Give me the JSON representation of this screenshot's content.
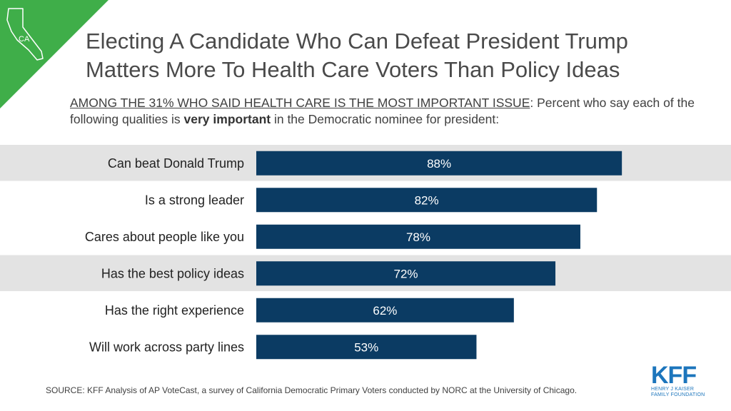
{
  "badge": {
    "label": "CA",
    "accent": "#3fae49"
  },
  "header": {
    "title_line1": "Electing A Candidate Who Can Defeat President Trump",
    "title_line2": "Matters More To Health Care Voters Than Policy Ideas"
  },
  "subtitle": {
    "underlined": "AMONG THE 31% WHO SAID HEALTH CARE IS THE MOST IMPORTANT ISSUE",
    "part1": ": Percent who say each of the following qualities is ",
    "bold": "very important",
    "part2": " in the Democratic nominee for president:"
  },
  "chart_data": {
    "type": "bar",
    "orientation": "horizontal",
    "categories": [
      "Can beat Donald Trump",
      "Is a strong leader",
      "Cares about people like you",
      "Has the best policy ideas",
      "Has the right experience",
      "Will work across party lines"
    ],
    "values": [
      88,
      82,
      78,
      72,
      62,
      53
    ],
    "value_labels": [
      "88%",
      "82%",
      "78%",
      "72%",
      "62%",
      "53%"
    ],
    "highlighted": [
      true,
      false,
      false,
      true,
      false,
      false
    ],
    "xlim": [
      0,
      100
    ],
    "bar_color": "#0b3b63",
    "highlight_color": "#e3e3e3",
    "title": "",
    "xlabel": "",
    "ylabel": ""
  },
  "footer": {
    "source": "SOURCE: KFF Analysis of AP VoteCast, a survey of California Democratic Primary Voters conducted by NORC at the University of Chicago."
  },
  "logo": {
    "name": "KFF",
    "line1": "HENRY J KAISER",
    "line2": "FAMILY FOUNDATION",
    "color": "#1c75bc"
  }
}
